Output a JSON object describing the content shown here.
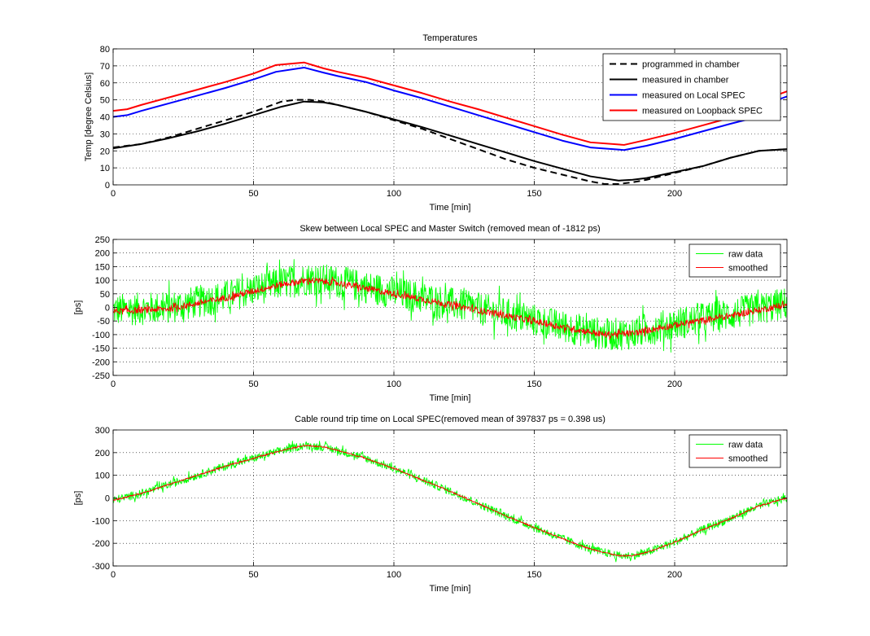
{
  "chart_data": [
    {
      "type": "line",
      "title": "Temperatures",
      "xlabel": "Time [min]",
      "ylabel": "Temp [degree Celsius]",
      "xlim": [
        0,
        240
      ],
      "ylim": [
        0,
        80
      ],
      "xticks": [
        "0",
        "50",
        "100",
        "150",
        "200"
      ],
      "yticks": [
        "0",
        "10",
        "20",
        "30",
        "40",
        "50",
        "60",
        "70",
        "80"
      ],
      "grid": true,
      "legend_position": "top-right",
      "series": [
        {
          "name": "programmed in chamber",
          "color": "#000000",
          "style": "dashed",
          "x": [
            0,
            10,
            20,
            30,
            40,
            50,
            60,
            65,
            70,
            75,
            80,
            90,
            100,
            110,
            120,
            130,
            140,
            150,
            160,
            170,
            175,
            180,
            185,
            190,
            200,
            210,
            220,
            230,
            240
          ],
          "y": [
            22,
            24,
            28,
            33,
            38,
            43,
            49,
            50,
            50,
            49,
            47,
            43,
            38,
            33,
            27,
            21,
            15,
            10,
            6,
            2,
            0.5,
            0.5,
            1.5,
            3,
            7,
            11,
            16,
            20,
            21
          ]
        },
        {
          "name": "measured in chamber",
          "color": "#000000",
          "style": "solid",
          "x": [
            0,
            10,
            20,
            30,
            40,
            50,
            60,
            68,
            75,
            80,
            90,
            100,
            110,
            120,
            130,
            140,
            150,
            160,
            170,
            180,
            185,
            190,
            200,
            210,
            220,
            230,
            240
          ],
          "y": [
            21.5,
            24,
            27.5,
            31.5,
            36,
            41,
            46,
            49,
            48.5,
            47,
            43,
            38.5,
            34,
            29,
            24,
            19,
            14,
            9.5,
            5,
            2.5,
            3,
            4,
            7.5,
            11,
            16,
            20,
            21
          ]
        },
        {
          "name": "measured on Local SPEC",
          "color": "#0000ff",
          "style": "solid",
          "x": [
            0,
            5,
            10,
            20,
            30,
            40,
            50,
            58,
            68,
            75,
            80,
            90,
            100,
            110,
            120,
            130,
            140,
            150,
            160,
            170,
            182,
            190,
            200,
            210,
            220,
            226,
            230,
            235,
            240
          ],
          "y": [
            40,
            41,
            43.5,
            48,
            52.5,
            57,
            62,
            66.5,
            69,
            66,
            64,
            60.5,
            55.5,
            51,
            46,
            41,
            36,
            31,
            26,
            22,
            20.5,
            23,
            27,
            31.5,
            36,
            38.5,
            45,
            49,
            52
          ]
        },
        {
          "name": "measured on Loopback SPEC",
          "color": "#ff0000",
          "style": "solid",
          "x": [
            0,
            5,
            10,
            20,
            30,
            40,
            50,
            58,
            68,
            75,
            80,
            90,
            100,
            110,
            120,
            130,
            140,
            150,
            160,
            170,
            182,
            190,
            200,
            210,
            220,
            226,
            230,
            235,
            240
          ],
          "y": [
            43.5,
            44.5,
            47,
            51.5,
            56,
            60.5,
            65.5,
            70.5,
            72,
            68.5,
            66.5,
            63,
            58.5,
            54,
            49,
            44.5,
            39.5,
            34.5,
            29.5,
            25,
            23.5,
            26.5,
            30.5,
            35,
            39.5,
            41.5,
            47.5,
            52,
            55
          ]
        }
      ]
    },
    {
      "type": "line",
      "title": "Skew between Local SPEC and Master Switch (removed mean of -1812 ps)",
      "xlabel": "Time [min]",
      "ylabel": "[ps]",
      "xlim": [
        0,
        240
      ],
      "ylim": [
        -250,
        250
      ],
      "xticks": [
        "0",
        "50",
        "100",
        "150",
        "200"
      ],
      "yticks": [
        "-250",
        "-200",
        "-150",
        "-100",
        "-50",
        "0",
        "50",
        "100",
        "150",
        "200",
        "250"
      ],
      "grid": true,
      "legend_position": "top-right",
      "series": [
        {
          "name": "raw data",
          "color": "#00ff00",
          "noise_amplitude": 60,
          "x": [
            0,
            20,
            40,
            60,
            70,
            80,
            100,
            120,
            140,
            160,
            175,
            185,
            200,
            220,
            240
          ],
          "y": [
            -10,
            0,
            40,
            90,
            105,
            95,
            55,
            15,
            -25,
            -70,
            -100,
            -95,
            -60,
            -25,
            15
          ]
        },
        {
          "name": "smoothed",
          "color": "#ff0000",
          "noise_amplitude": 12,
          "x": [
            0,
            20,
            40,
            60,
            70,
            80,
            100,
            120,
            140,
            160,
            175,
            185,
            200,
            220,
            240
          ],
          "y": [
            -15,
            -5,
            35,
            85,
            100,
            90,
            50,
            10,
            -30,
            -72,
            -100,
            -95,
            -65,
            -30,
            10
          ]
        }
      ]
    },
    {
      "type": "line",
      "title": "Cable round trip time on Local SPEC(removed mean of 397837 ps = 0.398 us)",
      "xlabel": "Time [min]",
      "ylabel": "[ps]",
      "xlim": [
        0,
        240
      ],
      "ylim": [
        -300,
        300
      ],
      "xticks": [
        "0",
        "50",
        "100",
        "150",
        "200"
      ],
      "yticks": [
        "-300",
        "-200",
        "-100",
        "0",
        "100",
        "200",
        "300"
      ],
      "grid": true,
      "legend_position": "top-right",
      "series": [
        {
          "name": "raw data",
          "color": "#00ff00",
          "noise_amplitude": 18,
          "x": [
            0,
            10,
            20,
            30,
            40,
            50,
            60,
            68,
            75,
            80,
            90,
            100,
            110,
            120,
            130,
            140,
            150,
            160,
            170,
            180,
            185,
            190,
            200,
            210,
            220,
            230,
            240
          ],
          "y": [
            -10,
            20,
            60,
            100,
            140,
            175,
            210,
            232,
            225,
            210,
            175,
            130,
            80,
            30,
            -25,
            -80,
            -130,
            -180,
            -225,
            -255,
            -255,
            -240,
            -195,
            -140,
            -90,
            -35,
            0
          ]
        },
        {
          "name": "smoothed",
          "color": "#ff0000",
          "noise_amplitude": 3,
          "x": [
            0,
            10,
            20,
            30,
            40,
            50,
            60,
            68,
            75,
            80,
            90,
            100,
            110,
            120,
            130,
            140,
            150,
            160,
            170,
            180,
            185,
            190,
            200,
            210,
            220,
            230,
            240
          ],
          "y": [
            -10,
            20,
            60,
            100,
            140,
            175,
            210,
            232,
            225,
            210,
            175,
            130,
            80,
            30,
            -25,
            -80,
            -130,
            -180,
            -225,
            -255,
            -255,
            -240,
            -195,
            -140,
            -90,
            -35,
            0
          ]
        }
      ]
    }
  ]
}
